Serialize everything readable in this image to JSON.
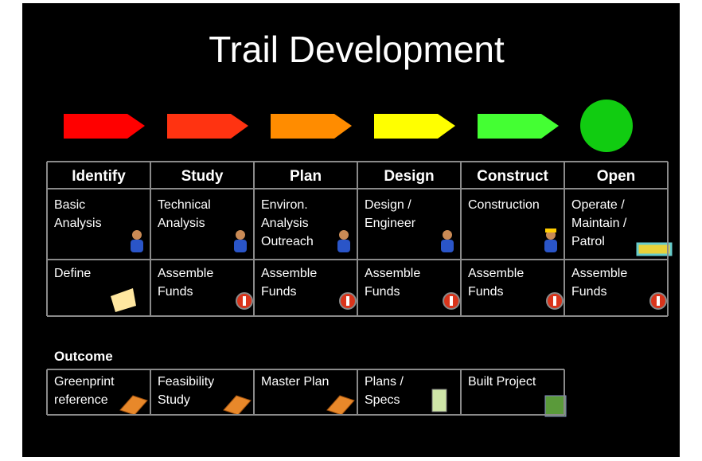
{
  "header": {
    "title": "Trail Development"
  },
  "phases": [
    {
      "name": "Identify",
      "color": "#ff0000",
      "activity": [
        "Basic",
        "Analysis"
      ],
      "funding": [
        "Define"
      ]
    },
    {
      "name": "Study",
      "color": "#ff3311",
      "activity": [
        "Technical",
        "Analysis"
      ],
      "funding": [
        "Assemble",
        "Funds"
      ]
    },
    {
      "name": "Plan",
      "color": "#ff8c00",
      "activity": [
        "Environ.",
        "Analysis",
        "Outreach"
      ],
      "funding": [
        "Assemble",
        "Funds"
      ]
    },
    {
      "name": "Design",
      "color": "#ffff00",
      "activity": [
        "Design /",
        "Engineer"
      ],
      "funding": [
        "Assemble",
        "Funds"
      ]
    },
    {
      "name": "Construct",
      "color": "#44ff33",
      "activity": [
        "Construction"
      ],
      "funding": [
        "Assemble",
        "Funds"
      ]
    },
    {
      "name": "Open",
      "color": "#11cc11",
      "activity": [
        "Operate /",
        "Maintain /",
        "Patrol"
      ],
      "funding": [
        "Assemble",
        "Funds"
      ]
    }
  ],
  "outcome": {
    "label": "Outcome",
    "items": [
      [
        "Greenprint",
        "reference"
      ],
      [
        "Feasibility",
        "Study"
      ],
      [
        "Master Plan"
      ],
      [
        "Plans /",
        "Specs"
      ],
      [
        "Built Project"
      ]
    ]
  }
}
